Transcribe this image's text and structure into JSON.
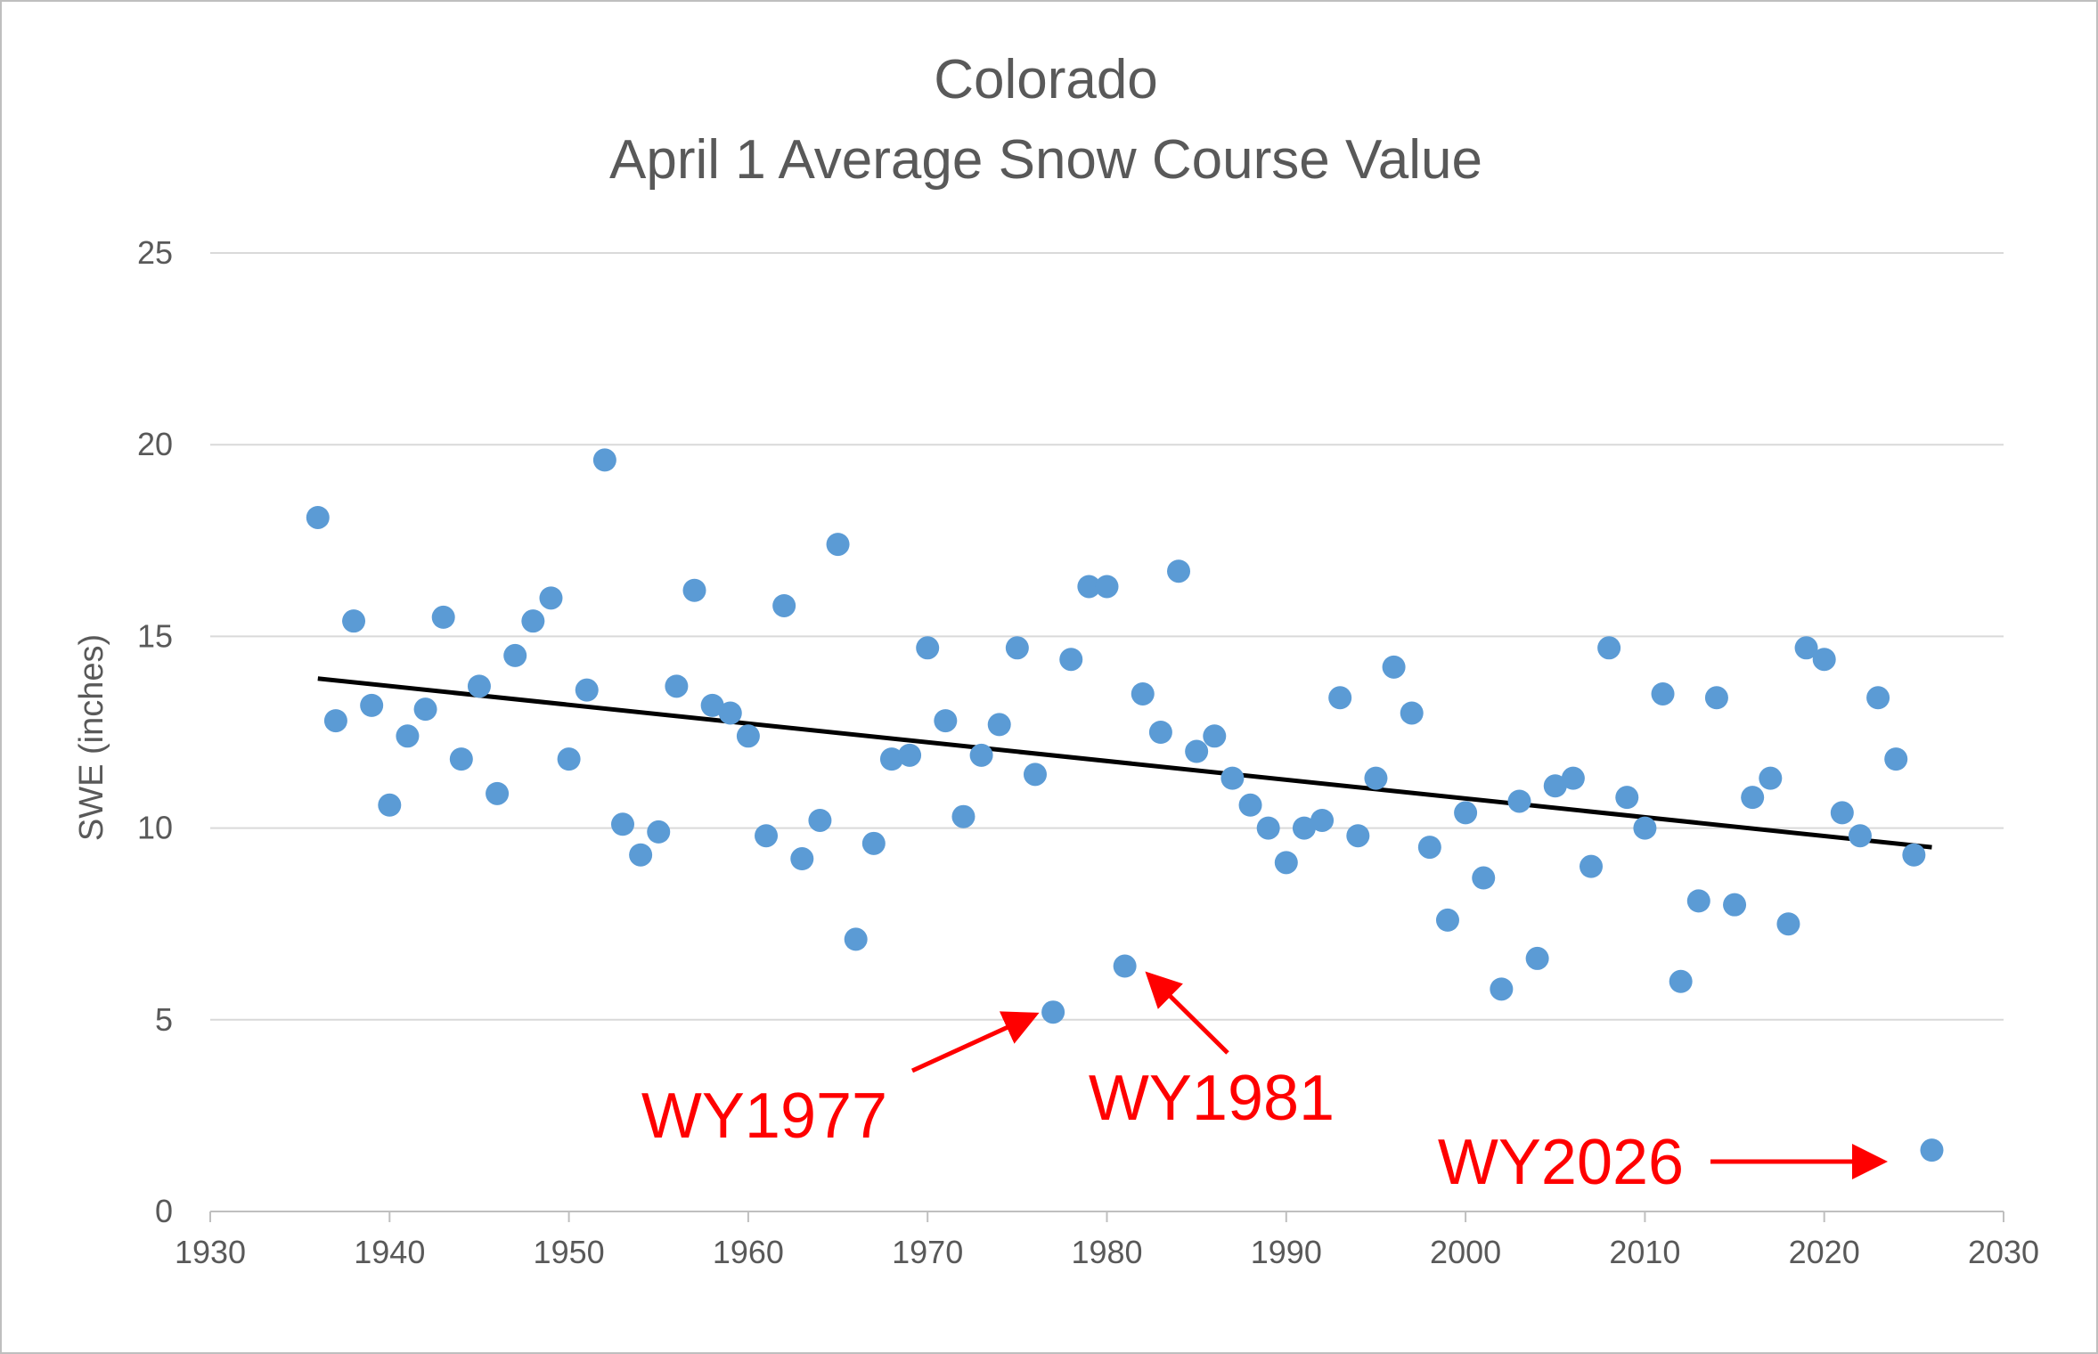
{
  "chart_data": {
    "type": "scatter",
    "title": "Colorado",
    "subtitle": "April 1 Average Snow Course Value",
    "xlabel": "",
    "ylabel": "SWE (inches)",
    "xlim": [
      1930,
      2030
    ],
    "ylim": [
      0,
      25
    ],
    "x_ticks": [
      "1930",
      "1940",
      "1950",
      "1960",
      "1970",
      "1980",
      "1990",
      "2000",
      "2010",
      "2020",
      "2030"
    ],
    "y_ticks": [
      "0",
      "5",
      "10",
      "15",
      "20",
      "25"
    ],
    "grid": true,
    "legend": "none",
    "marker_color": "#5b9bd5",
    "trend_color": "#000000",
    "annotation_color": "#ff0000",
    "series": [
      {
        "points": [
          [
            1936,
            18.1
          ],
          [
            1937,
            12.8
          ],
          [
            1938,
            15.4
          ],
          [
            1939,
            13.2
          ],
          [
            1940,
            10.6
          ],
          [
            1941,
            12.4
          ],
          [
            1942,
            13.1
          ],
          [
            1943,
            15.5
          ],
          [
            1944,
            11.8
          ],
          [
            1945,
            13.7
          ],
          [
            1946,
            10.9
          ],
          [
            1947,
            14.5
          ],
          [
            1948,
            15.4
          ],
          [
            1949,
            16.0
          ],
          [
            1950,
            11.8
          ],
          [
            1951,
            13.6
          ],
          [
            1952,
            19.6
          ],
          [
            1953,
            10.1
          ],
          [
            1954,
            9.3
          ],
          [
            1955,
            9.9
          ],
          [
            1956,
            13.7
          ],
          [
            1957,
            16.2
          ],
          [
            1958,
            13.2
          ],
          [
            1959,
            13.0
          ],
          [
            1960,
            12.4
          ],
          [
            1961,
            9.8
          ],
          [
            1962,
            15.8
          ],
          [
            1963,
            9.2
          ],
          [
            1964,
            10.2
          ],
          [
            1965,
            17.4
          ],
          [
            1966,
            7.1
          ],
          [
            1967,
            9.6
          ],
          [
            1968,
            11.8
          ],
          [
            1969,
            11.9
          ],
          [
            1970,
            14.7
          ],
          [
            1971,
            12.8
          ],
          [
            1972,
            10.3
          ],
          [
            1973,
            11.9
          ],
          [
            1974,
            12.7
          ],
          [
            1975,
            14.7
          ],
          [
            1976,
            11.4
          ],
          [
            1977,
            5.2
          ],
          [
            1978,
            14.4
          ],
          [
            1979,
            16.3
          ],
          [
            1980,
            16.3
          ],
          [
            1981,
            6.4
          ],
          [
            1982,
            13.5
          ],
          [
            1983,
            12.5
          ],
          [
            1984,
            16.7
          ],
          [
            1985,
            12.0
          ],
          [
            1986,
            12.4
          ],
          [
            1987,
            11.3
          ],
          [
            1988,
            10.6
          ],
          [
            1989,
            10.0
          ],
          [
            1990,
            9.1
          ],
          [
            1991,
            10.0
          ],
          [
            1992,
            10.2
          ],
          [
            1993,
            13.4
          ],
          [
            1994,
            9.8
          ],
          [
            1995,
            11.3
          ],
          [
            1996,
            14.2
          ],
          [
            1997,
            13.0
          ],
          [
            1998,
            9.5
          ],
          [
            1999,
            7.6
          ],
          [
            2000,
            10.4
          ],
          [
            2001,
            8.7
          ],
          [
            2002,
            5.8
          ],
          [
            2003,
            10.7
          ],
          [
            2004,
            6.6
          ],
          [
            2005,
            11.1
          ],
          [
            2006,
            11.3
          ],
          [
            2007,
            9.0
          ],
          [
            2008,
            14.7
          ],
          [
            2009,
            10.8
          ],
          [
            2010,
            10.0
          ],
          [
            2011,
            13.5
          ],
          [
            2012,
            6.0
          ],
          [
            2013,
            8.1
          ],
          [
            2014,
            13.4
          ],
          [
            2015,
            8.0
          ],
          [
            2016,
            10.8
          ],
          [
            2017,
            11.3
          ],
          [
            2018,
            7.5
          ],
          [
            2019,
            14.7
          ],
          [
            2020,
            14.4
          ],
          [
            2021,
            10.4
          ],
          [
            2022,
            9.8
          ],
          [
            2023,
            13.4
          ],
          [
            2024,
            11.8
          ],
          [
            2025,
            9.3
          ],
          [
            2026,
            1.6
          ]
        ]
      }
    ],
    "trendline": {
      "type": "linear",
      "x": [
        1936,
        2026
      ],
      "y": [
        13.9,
        9.5
      ]
    },
    "annotations": [
      {
        "text": "WY1977",
        "target": [
          1977,
          5.2
        ]
      },
      {
        "text": "WY1981",
        "target": [
          1981,
          6.4
        ]
      },
      {
        "text": "WY2026",
        "target": [
          2026,
          1.6
        ]
      }
    ]
  }
}
